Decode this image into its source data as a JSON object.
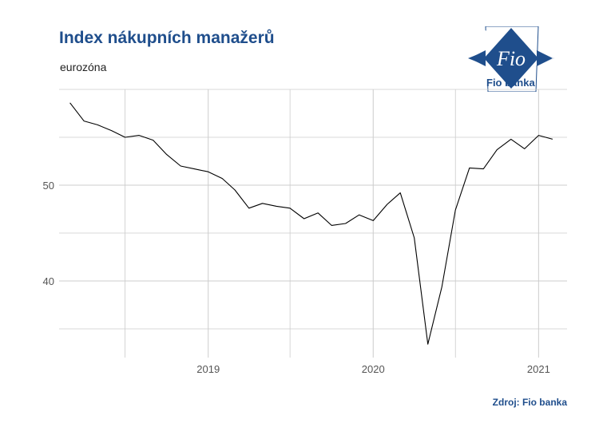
{
  "header": {
    "title": "Index nákupních manažerů",
    "subtitle": "eurozóna"
  },
  "logo": {
    "mark_text": "Fio",
    "name": "Fio banka",
    "brand_color": "#1f4e8c"
  },
  "footer": {
    "source": "Zdroj: Fio banka"
  },
  "chart_data": {
    "type": "line",
    "title": "Index nákupních manažerů",
    "subtitle": "eurozóna",
    "xlabel": "",
    "ylabel": "",
    "x": [
      "2018-03-01",
      "2018-04-01",
      "2018-05-01",
      "2018-06-01",
      "2018-07-01",
      "2018-08-01",
      "2018-09-01",
      "2018-10-01",
      "2018-11-01",
      "2018-12-01",
      "2019-01-01",
      "2019-02-01",
      "2019-03-01",
      "2019-04-01",
      "2019-05-01",
      "2019-06-01",
      "2019-07-01",
      "2019-08-01",
      "2019-09-01",
      "2019-10-01",
      "2019-11-01",
      "2019-12-01",
      "2020-01-01",
      "2020-02-01",
      "2020-03-01",
      "2020-04-01",
      "2020-05-01",
      "2020-06-01",
      "2020-07-01",
      "2020-08-01",
      "2020-09-01",
      "2020-10-01",
      "2020-11-01",
      "2020-12-01",
      "2021-01-01",
      "2021-02-01"
    ],
    "series": [
      {
        "name": "",
        "values": [
          58.6,
          56.7,
          56.3,
          55.7,
          55.0,
          55.2,
          54.7,
          53.2,
          52.0,
          51.7,
          51.4,
          50.7,
          49.5,
          47.6,
          48.1,
          47.8,
          47.6,
          46.5,
          47.1,
          45.8,
          46.0,
          46.9,
          46.3,
          48.0,
          49.2,
          44.5,
          33.4,
          39.4,
          47.4,
          51.8,
          51.7,
          53.7,
          54.8,
          53.8,
          55.2,
          54.8
        ]
      }
    ],
    "xticks": [
      "2019",
      "2020",
      "2021"
    ],
    "xtick_values": [
      "2019-01-01",
      "2020-01-01",
      "2021-01-01"
    ],
    "yticks": [
      40,
      50
    ],
    "xlim": [
      "2018-02-05",
      "2021-03-05"
    ],
    "ylim": [
      32.0,
      60.0
    ],
    "grid": true,
    "line_color": "#000000",
    "grid_color": "#cccccc"
  }
}
